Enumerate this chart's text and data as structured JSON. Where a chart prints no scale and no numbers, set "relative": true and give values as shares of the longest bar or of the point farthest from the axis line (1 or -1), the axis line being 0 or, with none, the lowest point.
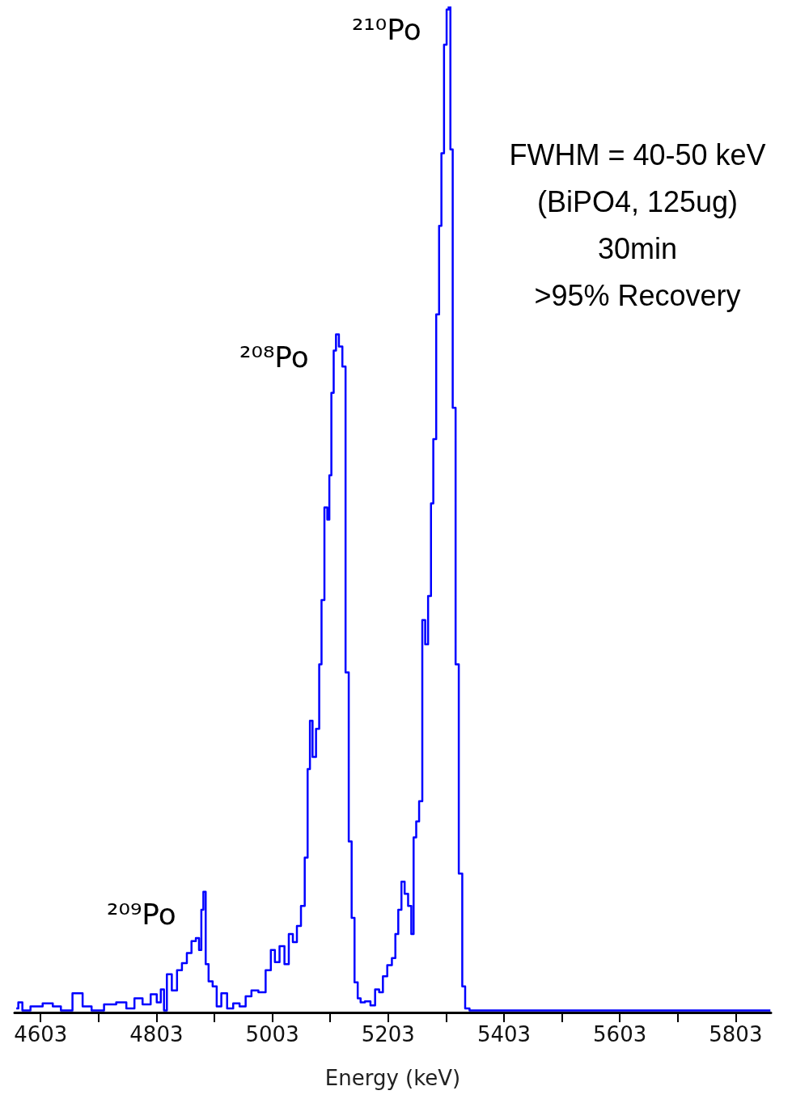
{
  "chart_data": {
    "type": "step",
    "xlabel": "Energy (keV)",
    "relative": true,
    "marker": "none",
    "grid": false,
    "xlim": [
      4558,
      5864
    ],
    "xticks": [
      4603,
      {
        "value": 4703,
        "label": null
      },
      4803,
      {
        "value": 4903,
        "label": null
      },
      5003,
      {
        "value": 5103,
        "label": null
      },
      5203,
      {
        "value": 5303,
        "label": null
      },
      5403,
      {
        "value": 5503,
        "label": null
      },
      5603,
      {
        "value": 5703,
        "label": null
      },
      5803
    ],
    "series": [
      {
        "color": "#0000ff",
        "x": [
          4561,
          4568,
          4575,
          4596,
          4617,
          4631,
          4645,
          4671,
          4680,
          4702,
          4723,
          4744,
          4758,
          4772,
          4786,
          4800,
          4807,
          4814,
          4818,
          4824,
          4835,
          4842,
          4852,
          4859,
          4868,
          4874,
          4879,
          4882,
          4886,
          4890,
          4896,
          4904,
          4910,
          4920,
          4930,
          4941,
          4952,
          4962,
          4972,
          4986,
          4997,
          5004,
          5011,
          5020,
          5028,
          5035,
          5042,
          5049,
          5056,
          5062,
          5066,
          5070,
          5075,
          5082,
          5086,
          5090,
          5096,
          5100,
          5103,
          5107,
          5111,
          5115,
          5121,
          5127,
          5132,
          5138,
          5142,
          5148,
          5153,
          5158,
          5168,
          5177,
          5184,
          5191,
          5197,
          5206,
          5213,
          5218,
          5223,
          5229,
          5234,
          5241,
          5245,
          5249,
          5254,
          5259,
          5265,
          5269,
          5275,
          5279,
          5283,
          5289,
          5293,
          5297,
          5302,
          5306,
          5309,
          5312,
          5317,
          5322,
          5328,
          5334,
          5338,
          5349,
          5863
        ],
        "values": [
          0.004,
          0.01,
          0.002,
          0.006,
          0.009,
          0.006,
          0.002,
          0.019,
          0.006,
          0.002,
          0.008,
          0.01,
          0.004,
          0.014,
          0.008,
          0.018,
          0.01,
          0.023,
          0.002,
          0.038,
          0.022,
          0.042,
          0.049,
          0.059,
          0.071,
          0.074,
          0.062,
          0.102,
          0.12,
          0.048,
          0.031,
          0.026,
          0.006,
          0.019,
          0.004,
          0.009,
          0.006,
          0.016,
          0.022,
          0.02,
          0.042,
          0.062,
          0.05,
          0.066,
          0.048,
          0.078,
          0.07,
          0.086,
          0.106,
          0.154,
          0.242,
          0.29,
          0.254,
          0.282,
          0.346,
          0.41,
          0.502,
          0.49,
          0.534,
          0.616,
          0.658,
          0.674,
          0.662,
          0.642,
          0.338,
          0.17,
          0.094,
          0.03,
          0.014,
          0.01,
          0.011,
          0.007,
          0.023,
          0.02,
          0.036,
          0.047,
          0.054,
          0.078,
          0.102,
          0.13,
          0.118,
          0.106,
          0.078,
          0.174,
          0.19,
          0.21,
          0.39,
          0.366,
          0.414,
          0.506,
          0.57,
          0.694,
          0.782,
          0.854,
          0.962,
          0.997,
          1.0,
          0.858,
          0.601,
          0.346,
          0.138,
          0.026,
          0.004,
          0.002,
          0.002
        ]
      }
    ],
    "annotations": [
      {
        "text": "²¹⁰Po",
        "x": 5309,
        "y": 1.0
      },
      {
        "text": "²⁰⁸Po",
        "x": 5115,
        "y": 0.674
      },
      {
        "text": "²⁰⁹Po",
        "x": 4886,
        "y": 0.12
      },
      "FWHM = 40-50 keV",
      "(BiPO4, 125ug)",
      "30min",
      ">95% Recovery"
    ]
  }
}
